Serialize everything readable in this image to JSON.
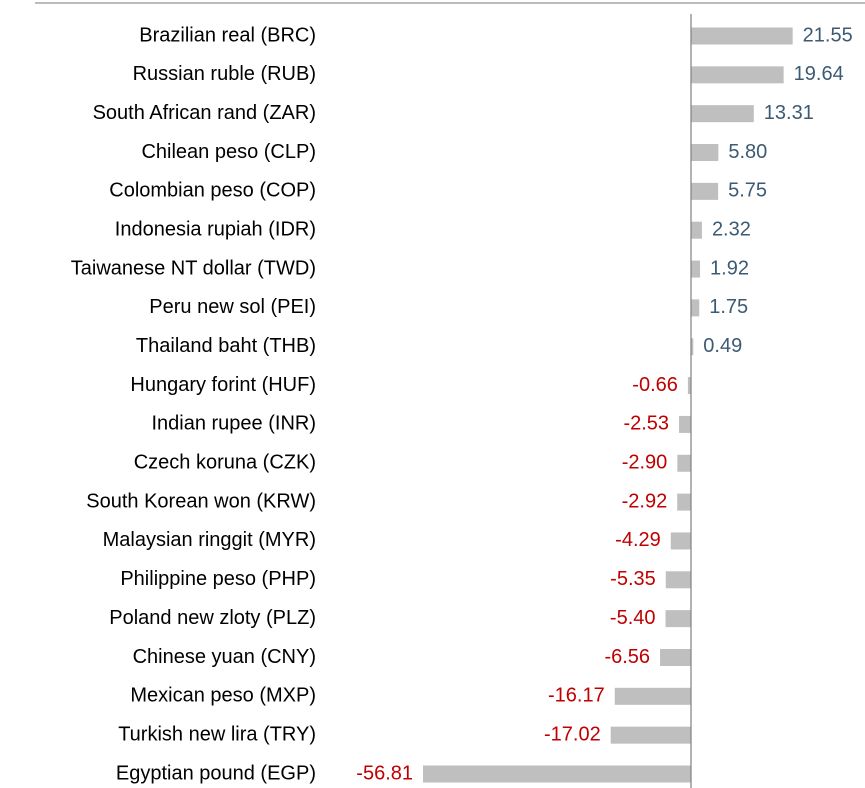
{
  "chart_data": {
    "type": "bar",
    "orientation": "horizontal",
    "categories": [
      "Brazilian real (BRC)",
      "Russian ruble (RUB)",
      "South African rand (ZAR)",
      "Chilean peso (CLP)",
      "Colombian peso (COP)",
      "Indonesia rupiah (IDR)",
      "Taiwanese NT dollar (TWD)",
      "Peru new sol (PEI)",
      "Thailand baht (THB)",
      "Hungary forint (HUF)",
      "Indian rupee (INR)",
      "Czech koruna (CZK)",
      "South Korean won (KRW)",
      "Malaysian ringgit (MYR)",
      "Philippine peso (PHP)",
      "Poland new zloty (PLZ)",
      "Chinese yuan (CNY)",
      "Mexican peso (MXP)",
      "Turkish new lira (TRY)",
      "Egyptian pound (EGP)"
    ],
    "values": [
      21.55,
      19.64,
      13.31,
      5.8,
      5.75,
      2.32,
      1.92,
      1.75,
      0.49,
      -0.66,
      -2.53,
      -2.9,
      -2.92,
      -4.29,
      -5.35,
      -5.4,
      -6.56,
      -16.17,
      -17.02,
      -56.81
    ],
    "value_labels": [
      "21.55",
      "19.64",
      "13.31",
      "5.80",
      "5.75",
      "2.32",
      "1.92",
      "1.75",
      "0.49",
      "-0.66",
      "-2.53",
      "-2.90",
      "-2.92",
      "-4.29",
      "-5.35",
      "-5.40",
      "-6.56",
      "-16.17",
      "-17.02",
      "-56.81"
    ],
    "color": "#bfbfbf",
    "positive_label_color": "#3d5a73",
    "negative_label_color": "#c00000"
  }
}
